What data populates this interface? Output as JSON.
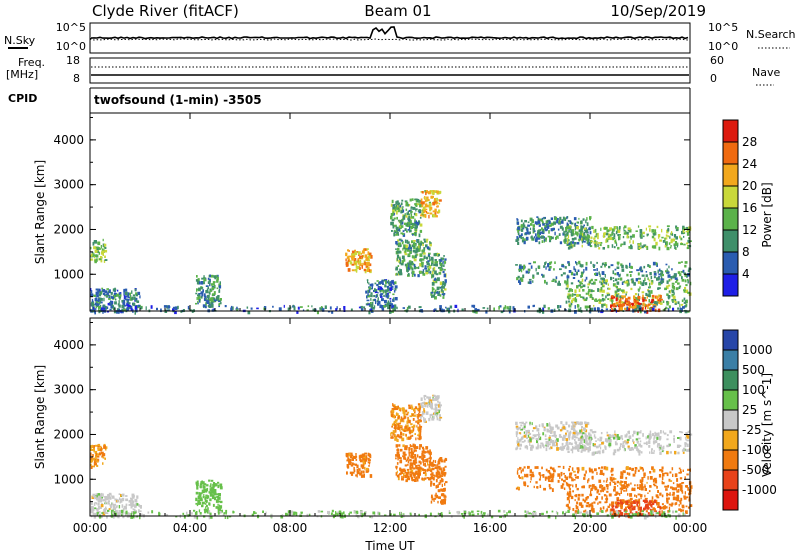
{
  "header": {
    "title": "Clyde River (fitACF)",
    "beam": "Beam 01",
    "date": "10/Sep/2019"
  },
  "strips": {
    "nsky_label": "N.Sky",
    "nsearch_label": "N.Search",
    "freq_label_1": "Freq.",
    "freq_label_2": "[MHz]",
    "nave_label": "Nave",
    "cpid_label": "CPID",
    "nsky_ticks": [
      "10^5",
      "10^0"
    ],
    "nsearch_ticks": [
      "10^5",
      "10^0"
    ],
    "freq_ticks": [
      "18",
      "8"
    ],
    "nave_ticks": [
      "60",
      "0"
    ],
    "cpid_text": "twofsound (1-min) -3505"
  },
  "colorbars": {
    "power": {
      "label": "Power [dB]",
      "colors": [
        "#1f1fe6",
        "#2a5cb0",
        "#3f8f6a",
        "#5bb24a",
        "#c9d83a",
        "#f2a81d",
        "#f06a10",
        "#dd1a0e"
      ],
      "tick_labels": [
        "4",
        "8",
        "12",
        "16",
        "20",
        "24",
        "28"
      ]
    },
    "velocity": {
      "label": "Velocity [m s^-1]",
      "colors": [
        "#2746a8",
        "#3b7fa6",
        "#3d8f5e",
        "#67c04a",
        "#c8c8c8",
        "#f2a81d",
        "#f07a10",
        "#e8421a",
        "#dd140e"
      ],
      "tick_labels": [
        "1000",
        "500",
        "100",
        "25",
        "-25",
        "-100",
        "-500",
        "-1000"
      ]
    }
  },
  "chart_data": [
    {
      "type": "heatmap",
      "name": "power",
      "xlabel": "",
      "ylabel": "Slant Range [km]",
      "x_ticks": [
        "00:00",
        "04:00",
        "08:00",
        "12:00",
        "16:00",
        "20:00",
        "00:00"
      ],
      "y_ticks": [
        1000,
        2000,
        3000,
        4000
      ],
      "ylim": [
        180,
        4600
      ],
      "xlim_hours": [
        0,
        24
      ],
      "echo_regions": [
        {
          "t": [
            0.0,
            0.6
          ],
          "r": [
            1300,
            1800
          ],
          "v": 14
        },
        {
          "t": [
            0.0,
            2.0
          ],
          "r": [
            180,
            700
          ],
          "v": 8
        },
        {
          "t": [
            4.2,
            5.2
          ],
          "r": [
            300,
            1000
          ],
          "v": 10
        },
        {
          "t": [
            10.2,
            11.2
          ],
          "r": [
            1100,
            1600
          ],
          "v": 22
        },
        {
          "t": [
            11.0,
            12.2
          ],
          "r": [
            300,
            900
          ],
          "v": 8
        },
        {
          "t": [
            12.0,
            13.2
          ],
          "r": [
            1900,
            2700
          ],
          "v": 12
        },
        {
          "t": [
            13.2,
            14.0
          ],
          "r": [
            2300,
            2900
          ],
          "v": 20
        },
        {
          "t": [
            12.2,
            13.6
          ],
          "r": [
            1000,
            1800
          ],
          "v": 12
        },
        {
          "t": [
            13.6,
            14.2
          ],
          "r": [
            500,
            1500
          ],
          "v": 12
        },
        {
          "t": [
            17.0,
            20.0
          ],
          "r": [
            1700,
            2300
          ],
          "v": 10
        },
        {
          "t": [
            19.0,
            24.0
          ],
          "r": [
            1600,
            2100
          ],
          "v": 14
        },
        {
          "t": [
            17.0,
            24.0
          ],
          "r": [
            800,
            1300
          ],
          "v": 10
        },
        {
          "t": [
            19.0,
            24.0
          ],
          "r": [
            300,
            900
          ],
          "v": 14
        },
        {
          "t": [
            20.8,
            22.8
          ],
          "r": [
            200,
            550
          ],
          "v": 26
        },
        {
          "t": [
            0.0,
            24.0
          ],
          "r": [
            180,
            320
          ],
          "v": 8
        }
      ]
    },
    {
      "type": "heatmap",
      "name": "velocity",
      "xlabel": "Time UT",
      "ylabel": "Slant Range [km]",
      "x_ticks": [
        "00:00",
        "04:00",
        "08:00",
        "12:00",
        "16:00",
        "20:00",
        "00:00"
      ],
      "y_ticks": [
        1000,
        2000,
        3000,
        4000
      ],
      "ylim": [
        180,
        4600
      ],
      "xlim_hours": [
        0,
        24
      ],
      "echo_regions": [
        {
          "t": [
            0.0,
            0.6
          ],
          "r": [
            1300,
            1800
          ],
          "v": -100
        },
        {
          "t": [
            0.0,
            2.0
          ],
          "r": [
            180,
            700
          ],
          "v": 0
        },
        {
          "t": [
            4.2,
            5.2
          ],
          "r": [
            300,
            1000
          ],
          "v": 60
        },
        {
          "t": [
            10.2,
            11.2
          ],
          "r": [
            1100,
            1600
          ],
          "v": -150
        },
        {
          "t": [
            12.0,
            13.2
          ],
          "r": [
            1900,
            2700
          ],
          "v": -100
        },
        {
          "t": [
            13.2,
            14.0
          ],
          "r": [
            2300,
            2900
          ],
          "v": 0
        },
        {
          "t": [
            12.2,
            13.6
          ],
          "r": [
            1000,
            1800
          ],
          "v": -150
        },
        {
          "t": [
            13.6,
            14.2
          ],
          "r": [
            500,
            1500
          ],
          "v": -200
        },
        {
          "t": [
            17.0,
            20.0
          ],
          "r": [
            1700,
            2300
          ],
          "v": 0
        },
        {
          "t": [
            19.0,
            24.0
          ],
          "r": [
            1600,
            2100
          ],
          "v": 0
        },
        {
          "t": [
            17.0,
            24.0
          ],
          "r": [
            800,
            1300
          ],
          "v": -150
        },
        {
          "t": [
            19.0,
            24.0
          ],
          "r": [
            300,
            900
          ],
          "v": -200
        },
        {
          "t": [
            20.8,
            22.8
          ],
          "r": [
            200,
            550
          ],
          "v": -600
        },
        {
          "t": [
            0.0,
            24.0
          ],
          "r": [
            180,
            320
          ],
          "v": 40
        }
      ]
    }
  ]
}
